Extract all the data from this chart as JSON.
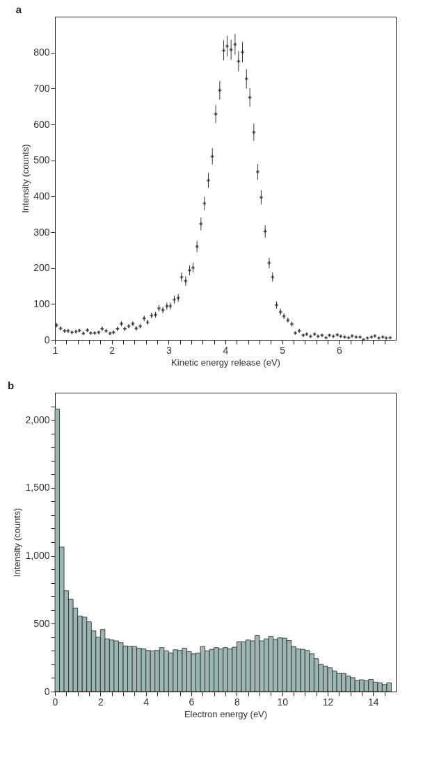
{
  "chart_data": [
    {
      "type": "scatter",
      "title": "a",
      "xlabel": "Kinetic energy release (eV)",
      "ylabel": "Intensity (counts)",
      "marker": "cross",
      "grid": false,
      "xlim": [
        1,
        7
      ],
      "ylim": [
        0,
        900
      ],
      "xticks": [
        1,
        {
          "value": 1.2,
          "label": null
        },
        {
          "value": 1.4,
          "label": null
        },
        {
          "value": 1.6,
          "label": null
        },
        {
          "value": 1.8,
          "label": null
        },
        2,
        {
          "value": 2.2,
          "label": null
        },
        {
          "value": 2.4,
          "label": null
        },
        {
          "value": 2.6,
          "label": null
        },
        {
          "value": 2.8,
          "label": null
        },
        3,
        {
          "value": 3.2,
          "label": null
        },
        {
          "value": 3.4,
          "label": null
        },
        {
          "value": 3.6,
          "label": null
        },
        {
          "value": 3.8,
          "label": null
        },
        4,
        {
          "value": 4.2,
          "label": null
        },
        {
          "value": 4.4,
          "label": null
        },
        {
          "value": 4.6,
          "label": null
        },
        {
          "value": 4.8,
          "label": null
        },
        5,
        {
          "value": 5.2,
          "label": null
        },
        {
          "value": 5.4,
          "label": null
        },
        {
          "value": 5.6,
          "label": null
        },
        {
          "value": 5.8,
          "label": null
        },
        6,
        {
          "value": 6.2,
          "label": null
        },
        {
          "value": 6.4,
          "label": null
        },
        {
          "value": 6.6,
          "label": null
        },
        {
          "value": 6.8,
          "label": null
        }
      ],
      "yticks": [
        0,
        100,
        200,
        300,
        400,
        500,
        600,
        700,
        800
      ],
      "x": [
        1.03,
        1.1,
        1.17,
        1.23,
        1.3,
        1.37,
        1.43,
        1.5,
        1.57,
        1.63,
        1.7,
        1.77,
        1.83,
        1.9,
        1.97,
        2.03,
        2.1,
        2.17,
        2.23,
        2.3,
        2.37,
        2.43,
        2.5,
        2.57,
        2.63,
        2.7,
        2.77,
        2.83,
        2.9,
        2.97,
        3.03,
        3.1,
        3.17,
        3.23,
        3.3,
        3.37,
        3.43,
        3.5,
        3.57,
        3.63,
        3.7,
        3.77,
        3.83,
        3.9,
        3.97,
        4.03,
        4.1,
        4.17,
        4.23,
        4.3,
        4.37,
        4.43,
        4.5,
        4.57,
        4.63,
        4.7,
        4.77,
        4.83,
        4.9,
        4.97,
        5.03,
        5.1,
        5.17,
        5.23,
        5.3,
        5.37,
        5.43,
        5.5,
        5.57,
        5.63,
        5.7,
        5.77,
        5.83,
        5.9,
        5.97,
        6.03,
        6.1,
        6.17,
        6.23,
        6.3,
        6.37,
        6.43,
        6.5,
        6.57,
        6.63,
        6.7,
        6.77,
        6.83,
        6.9
      ],
      "series": [
        {
          "color": "#231f20",
          "values": [
            41,
            32,
            25,
            25,
            21,
            23,
            26,
            18,
            27,
            19,
            19,
            21,
            31,
            25,
            18,
            21,
            31,
            45,
            31,
            38,
            45,
            32,
            38,
            60,
            49,
            68,
            70,
            88,
            83,
            94,
            94,
            112,
            117,
            175,
            164,
            194,
            201,
            260,
            323,
            380,
            444,
            511,
            629,
            695,
            806,
            818,
            808,
            823,
            776,
            801,
            727,
            675,
            578,
            468,
            397,
            302,
            214,
            175,
            97,
            78,
            66,
            55,
            44,
            19,
            25,
            13,
            16,
            10,
            16,
            10,
            13,
            6,
            13,
            10,
            14,
            10,
            8,
            6,
            11,
            8,
            8,
            1,
            5,
            8,
            11,
            5,
            8,
            5,
            6
          ],
          "errors": [
            6,
            6,
            5,
            5,
            5,
            5,
            5,
            4,
            5,
            4,
            4,
            5,
            6,
            5,
            4,
            5,
            6,
            7,
            6,
            6,
            7,
            6,
            6,
            8,
            7,
            8,
            8,
            9,
            9,
            10,
            10,
            11,
            11,
            13,
            13,
            14,
            14,
            16,
            18,
            19,
            21,
            23,
            25,
            26,
            28,
            29,
            28,
            29,
            28,
            28,
            27,
            26,
            24,
            22,
            20,
            17,
            15,
            13,
            10,
            9,
            8,
            7,
            7,
            4,
            5,
            4,
            4,
            3,
            4,
            3,
            4,
            2,
            4,
            3,
            4,
            3,
            3,
            2,
            3,
            3,
            3,
            null,
            2,
            3,
            3,
            2,
            3,
            2,
            2
          ]
        }
      ]
    },
    {
      "type": "histogram",
      "title": "b",
      "xlabel": "Electron energy (eV)",
      "ylabel": "Intensity (counts)",
      "color": "#9bb6b3",
      "grid": false,
      "xlim": [
        0,
        15
      ],
      "ylim": [
        0,
        2200
      ],
      "xticks": [
        0,
        {
          "value": 0.5,
          "label": null
        },
        {
          "value": 1,
          "label": null
        },
        {
          "value": 1.5,
          "label": null
        },
        2,
        {
          "value": 2.5,
          "label": null
        },
        {
          "value": 3,
          "label": null
        },
        {
          "value": 3.5,
          "label": null
        },
        4,
        {
          "value": 4.5,
          "label": null
        },
        {
          "value": 5,
          "label": null
        },
        {
          "value": 5.5,
          "label": null
        },
        6,
        {
          "value": 6.5,
          "label": null
        },
        {
          "value": 7,
          "label": null
        },
        {
          "value": 7.5,
          "label": null
        },
        8,
        {
          "value": 8.5,
          "label": null
        },
        {
          "value": 9,
          "label": null
        },
        {
          "value": 9.5,
          "label": null
        },
        10,
        {
          "value": 10.5,
          "label": null
        },
        {
          "value": 11,
          "label": null
        },
        {
          "value": 11.5,
          "label": null
        },
        12,
        {
          "value": 12.5,
          "label": null
        },
        {
          "value": 13,
          "label": null
        },
        {
          "value": 13.5,
          "label": null
        },
        14,
        {
          "value": 14.5,
          "label": null
        }
      ],
      "yticks": [
        0,
        {
          "value": 100,
          "label": null
        },
        {
          "value": 200,
          "label": null
        },
        {
          "value": 300,
          "label": null
        },
        {
          "value": 400,
          "label": null
        },
        500,
        {
          "value": 600,
          "label": null
        },
        {
          "value": 700,
          "label": null
        },
        {
          "value": 800,
          "label": null
        },
        {
          "value": 900,
          "label": null
        },
        {
          "value": 1000,
          "label": "1,000"
        },
        {
          "value": 1100,
          "label": null
        },
        {
          "value": 1200,
          "label": null
        },
        {
          "value": 1300,
          "label": null
        },
        {
          "value": 1400,
          "label": null
        },
        {
          "value": 1500,
          "label": "1,500"
        },
        {
          "value": 1600,
          "label": null
        },
        {
          "value": 1700,
          "label": null
        },
        {
          "value": 1800,
          "label": null
        },
        {
          "value": 1900,
          "label": null
        },
        {
          "value": 2000,
          "label": "2,000"
        },
        {
          "value": 2100,
          "label": null
        }
      ],
      "bins": [
        0,
        0.2,
        0.4,
        0.6,
        0.8,
        1,
        1.2,
        1.4,
        1.6,
        1.8,
        2,
        2.2,
        2.4,
        2.6,
        2.8,
        3,
        3.2,
        3.4,
        3.6,
        3.8,
        4,
        4.2,
        4.4,
        4.6,
        4.8,
        5,
        5.2,
        5.4,
        5.6,
        5.8,
        6,
        6.2,
        6.4,
        6.6,
        6.8,
        7,
        7.2,
        7.4,
        7.6,
        7.8,
        8,
        8.2,
        8.4,
        8.6,
        8.8,
        9,
        9.2,
        9.4,
        9.6,
        9.8,
        10,
        10.2,
        10.4,
        10.6,
        10.8,
        11,
        11.2,
        11.4,
        11.6,
        11.8,
        12,
        12.2,
        12.4,
        12.6,
        12.8,
        13,
        13.2,
        13.4,
        13.6,
        13.8,
        14,
        14.2,
        14.4,
        14.6,
        14.8
      ],
      "values": [
        2079,
        1064,
        743,
        679,
        614,
        556,
        548,
        514,
        447,
        401,
        457,
        388,
        380,
        373,
        360,
        336,
        332,
        332,
        319,
        314,
        303,
        300,
        303,
        324,
        300,
        285,
        308,
        304,
        319,
        295,
        278,
        283,
        331,
        300,
        311,
        324,
        314,
        324,
        314,
        327,
        367,
        367,
        380,
        373,
        412,
        373,
        388,
        406,
        385,
        396,
        393,
        376,
        332,
        314,
        311,
        303,
        278,
        242,
        201,
        188,
        175,
        152,
        136,
        136,
        115,
        103,
        82,
        87,
        79,
        90,
        70,
        65,
        52,
        65
      ]
    }
  ]
}
